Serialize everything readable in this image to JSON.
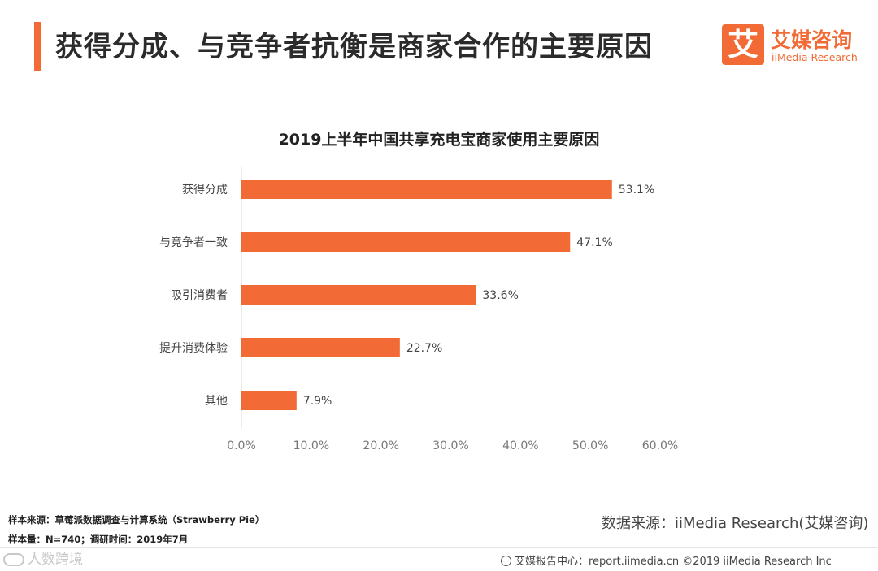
{
  "header": {
    "title": "获得分成、与竞争者抗衡是商家合作的主要原因",
    "accent_color": "#f26a35"
  },
  "logo": {
    "mark": "艾",
    "name_cn": "艾媒咨询",
    "name_en": "iiMedia Research"
  },
  "chart_data": {
    "type": "bar",
    "orientation": "horizontal",
    "title": "2019上半年中国共享充电宝商家使用主要原因",
    "categories": [
      "获得分成",
      "与竞争者一致",
      "吸引消费者",
      "提升消费体验",
      "其他"
    ],
    "values": [
      53.1,
      47.1,
      33.6,
      22.7,
      7.9
    ],
    "value_labels": [
      "53.1%",
      "47.1%",
      "33.6%",
      "22.7%",
      "7.9%"
    ],
    "xlim": [
      0,
      60
    ],
    "x_ticks": [
      "0.0%",
      "10.0%",
      "20.0%",
      "30.0%",
      "40.0%",
      "50.0%",
      "60.0%"
    ],
    "xlabel": "",
    "ylabel": "",
    "grid": false,
    "bar_color": "#f26a35"
  },
  "notes": {
    "sample_source": "样本来源：草莓派数据调查与计算系统（Strawberry Pie）",
    "sample_size": "样本量：N=740；调研时间：2019年7月"
  },
  "source": "数据来源：iiMedia Research(艾媒咨询)",
  "watermark": "人数跨境",
  "footer": {
    "text": "艾媒报告中心：report.iimedia.cn ©2019 iiMedia Research Inc"
  }
}
